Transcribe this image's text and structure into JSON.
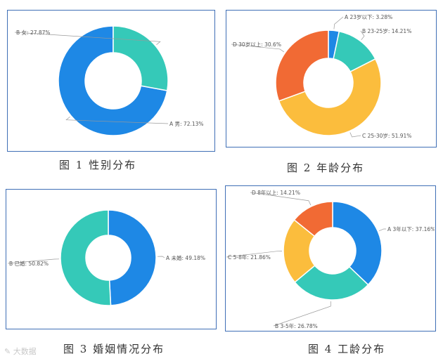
{
  "captions": [
    "图 1   性别分布",
    "图 2   年龄分布",
    "图 3   婚姻情况分布",
    "图 4   工龄分布"
  ],
  "watermark": "大数据",
  "chart_data": [
    {
      "type": "pie",
      "title": "图 1   性别分布",
      "donut": true,
      "slices": [
        {
          "label": "A 男",
          "value": 72.13,
          "text": "A 男: 72.13%",
          "color": "#1e88e5"
        },
        {
          "label": "B 女",
          "value": 27.87,
          "text": "B 女: 27.87%",
          "color": "#35c9b8"
        }
      ]
    },
    {
      "type": "pie",
      "title": "图 2   年龄分布",
      "donut": true,
      "slices": [
        {
          "label": "A 23岁以下",
          "value": 3.28,
          "text": "A 23岁以下: 3.28%",
          "color": "#1e88e5"
        },
        {
          "label": "B 23-25岁",
          "value": 14.21,
          "text": "B 23-25岁: 14.21%",
          "color": "#35c9b8"
        },
        {
          "label": "C 25-30岁",
          "value": 51.91,
          "text": "C 25-30岁: 51.91%",
          "color": "#fbbd3d"
        },
        {
          "label": "D 30岁以上",
          "value": 30.6,
          "text": "D 30岁以上: 30.6%",
          "color": "#f16a34"
        }
      ]
    },
    {
      "type": "pie",
      "title": "图 3   婚姻情况分布",
      "donut": true,
      "slices": [
        {
          "label": "A 未婚",
          "value": 49.18,
          "text": "A 未婚: 49.18%",
          "color": "#1e88e5"
        },
        {
          "label": "B 已婚",
          "value": 50.82,
          "text": "B 已婚: 50.82%",
          "color": "#35c9b8"
        }
      ]
    },
    {
      "type": "pie",
      "title": "图 4   工龄分布",
      "donut": true,
      "slices": [
        {
          "label": "A 3年以下",
          "value": 37.16,
          "text": "A 3年以下: 37.16%",
          "color": "#1e88e5"
        },
        {
          "label": "B 3-5年",
          "value": 26.78,
          "text": "B 3-5年: 26.78%",
          "color": "#35c9b8"
        },
        {
          "label": "C 5-8年",
          "value": 21.86,
          "text": "C 5-8年: 21.86%",
          "color": "#fbbd3d"
        },
        {
          "label": "D 8年以上",
          "value": 14.21,
          "text": "D 8年以上: 14.21%",
          "color": "#f16a34"
        }
      ]
    }
  ]
}
